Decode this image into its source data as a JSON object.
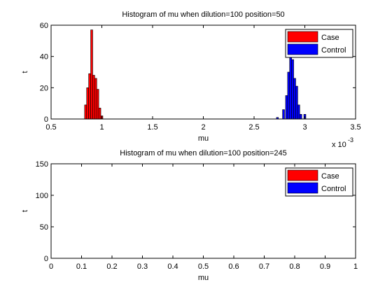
{
  "chart_data": [
    {
      "type": "bar",
      "title": "Histogram of mu when dilution=100 position=50",
      "xlabel": "mu",
      "ylabel": "t",
      "xlim": [
        0.5,
        3.5
      ],
      "ylim": [
        0,
        60
      ],
      "x_ticks": [
        "0.5",
        "1",
        "1.5",
        "2",
        "2.5",
        "3",
        "3.5"
      ],
      "y_ticks": [
        "0",
        "20",
        "40",
        "60"
      ],
      "x_multiplier": "x 10",
      "x_multiplier_exp": "-3",
      "grid": false,
      "legend_position": "top-right",
      "series": [
        {
          "name": "Case",
          "color": "#ff0000",
          "bins": [
            {
              "x": 0.84,
              "count": 9
            },
            {
              "x": 0.86,
              "count": 20
            },
            {
              "x": 0.88,
              "count": 29
            },
            {
              "x": 0.9,
              "count": 57
            },
            {
              "x": 0.92,
              "count": 28
            },
            {
              "x": 0.94,
              "count": 26
            },
            {
              "x": 0.96,
              "count": 19
            },
            {
              "x": 0.98,
              "count": 7
            },
            {
              "x": 1.0,
              "count": 2
            }
          ]
        },
        {
          "name": "Control",
          "color": "#0000ff",
          "bins": [
            {
              "x": 2.73,
              "count": 1
            },
            {
              "x": 2.79,
              "count": 6
            },
            {
              "x": 2.82,
              "count": 15
            },
            {
              "x": 2.84,
              "count": 30
            },
            {
              "x": 2.86,
              "count": 42
            },
            {
              "x": 2.88,
              "count": 38
            },
            {
              "x": 2.9,
              "count": 26
            },
            {
              "x": 2.92,
              "count": 21
            },
            {
              "x": 2.94,
              "count": 9
            },
            {
              "x": 2.96,
              "count": 3
            },
            {
              "x": 3.0,
              "count": 3
            }
          ]
        }
      ]
    },
    {
      "type": "bar",
      "title": "Histogram of mu when dilution=100 position=245",
      "xlabel": "mu",
      "ylabel": "t",
      "xlim": [
        0,
        1
      ],
      "ylim": [
        0,
        150
      ],
      "x_ticks": [
        "0",
        "0.1",
        "0.2",
        "0.3",
        "0.4",
        "0.5",
        "0.6",
        "0.7",
        "0.8",
        "0.9",
        "1"
      ],
      "y_ticks": [
        "0",
        "50",
        "100",
        "150"
      ],
      "grid": false,
      "legend_position": "top-right",
      "series": [
        {
          "name": "Case",
          "color": "#ff0000",
          "bins": []
        },
        {
          "name": "Control",
          "color": "#0000ff",
          "bins": []
        }
      ]
    }
  ]
}
